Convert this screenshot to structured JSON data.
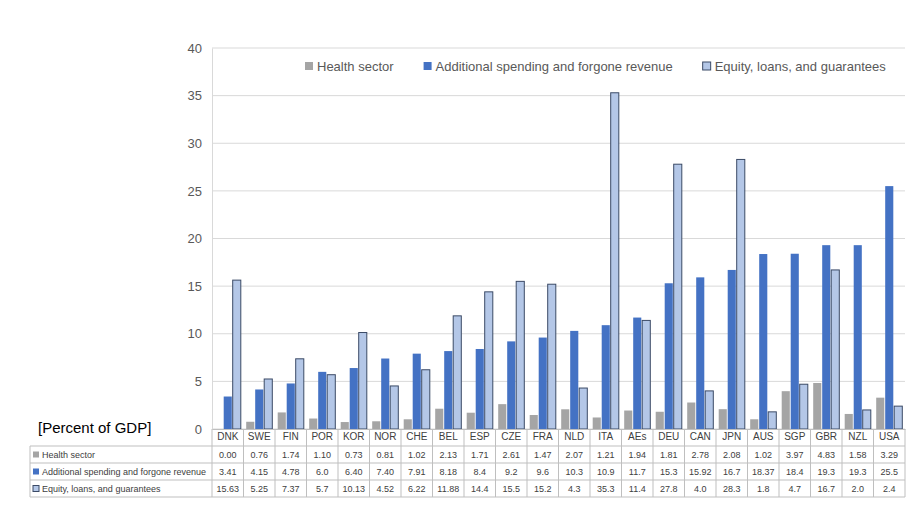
{
  "chart_data": {
    "type": "bar",
    "ylabel": "[Percent of GDP]",
    "categories": [
      "DNK",
      "SWE",
      "FIN",
      "POR",
      "KOR",
      "NOR",
      "CHE",
      "BEL",
      "ESP",
      "CZE",
      "FRA",
      "NLD",
      "ITA",
      "AEs",
      "DEU",
      "CAN",
      "JPN",
      "AUS",
      "SGP",
      "GBR",
      "NZL",
      "USA"
    ],
    "series": [
      {
        "name": "Health sector",
        "color": "#a5a5a5",
        "values": [
          0,
          0.76,
          1.74,
          1.1,
          0.73,
          0.81,
          1.02,
          2.13,
          1.71,
          2.61,
          1.47,
          2.07,
          1.21,
          1.94,
          1.81,
          2.78,
          2.08,
          1.02,
          3.97,
          4.83,
          1.58,
          3.29
        ],
        "value_labels": [
          "0.00",
          "0.76",
          "1.74",
          "1.10",
          "0.73",
          "0.81",
          "1.02",
          "2.13",
          "1.71",
          "2.61",
          "1.47",
          "2.07",
          "1.21",
          "1.94",
          "1.81",
          "2.78",
          "2.08",
          "1.02",
          "3.97",
          "4.83",
          "1.58",
          "3.29"
        ]
      },
      {
        "name": "Additional spending and forgone revenue",
        "color": "#4472c4",
        "values": [
          3.41,
          4.15,
          4.78,
          6.0,
          6.4,
          7.4,
          7.91,
          8.18,
          8.4,
          9.2,
          9.6,
          10.3,
          10.9,
          11.7,
          15.3,
          15.92,
          16.7,
          18.37,
          18.4,
          19.3,
          19.3,
          25.5
        ],
        "value_labels": [
          "3.41",
          "4.15",
          "4.78",
          "6.0",
          "6.40",
          "7.40",
          "7.91",
          "8.18",
          "8.4",
          "9.2",
          "9.6",
          "10.3",
          "10.9",
          "11.7",
          "15.3",
          "15.92",
          "16.7",
          "18.37",
          "18.4",
          "19.3",
          "19.3",
          "25.5"
        ]
      },
      {
        "name": "Equity, loans, and guarantees",
        "color": "#b4c7e7",
        "values": [
          15.63,
          5.25,
          7.37,
          5.7,
          10.13,
          4.52,
          6.22,
          11.88,
          14.4,
          15.5,
          15.2,
          4.3,
          35.3,
          11.4,
          27.8,
          4.0,
          28.3,
          1.8,
          4.7,
          16.7,
          2.0,
          2.4
        ],
        "value_labels": [
          "15.63",
          "5.25",
          "7.37",
          "5.7",
          "10.13",
          "4.52",
          "6.22",
          "11.88",
          "14.4",
          "15.5",
          "15.2",
          "4.3",
          "35.3",
          "11.4",
          "27.8",
          "4.0",
          "28.3",
          "1.8",
          "4.7",
          "16.7",
          "2.0",
          "2.4"
        ]
      }
    ],
    "ylim": [
      0,
      40
    ],
    "yticks": [
      0,
      5,
      10,
      15,
      20,
      25,
      30,
      35,
      40
    ],
    "grid": true,
    "legend": "top"
  }
}
